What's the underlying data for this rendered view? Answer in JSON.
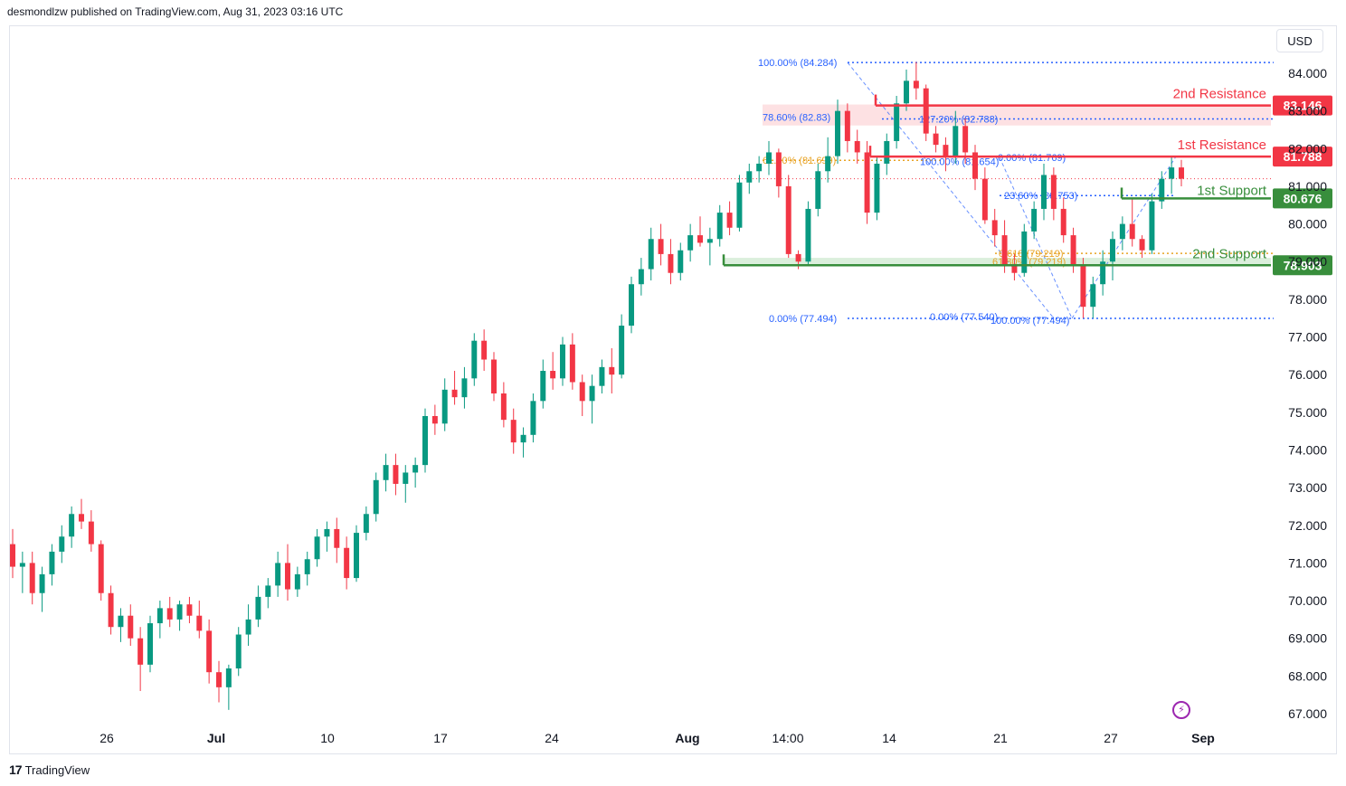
{
  "header": {
    "text": "desmondlzw published on TradingView.com, Aug 31, 2023 03:16 UTC"
  },
  "currency": "USD",
  "footer": {
    "brand": "TradingView",
    "logo_icon": "tradingview-logo-icon"
  },
  "colors": {
    "up": "#089981",
    "down": "#f23645",
    "resistance": "#f23645",
    "support": "#388e3c",
    "fib": "#2962ff",
    "fib_gold": "#e8a325"
  },
  "chart_data": {
    "type": "candlestick",
    "instrument_note": "",
    "y_axis": {
      "ticks": [
        "84.000",
        "83.000",
        "82.000",
        "81.000",
        "80.000",
        "79.000",
        "78.000",
        "77.000",
        "76.000",
        "75.000",
        "74.000",
        "73.000",
        "72.000",
        "71.000",
        "70.000",
        "69.000",
        "68.000",
        "67.000"
      ],
      "tick_values": [
        84,
        83,
        82,
        81,
        80,
        79,
        78,
        77,
        76,
        75,
        74,
        73,
        72,
        71,
        70,
        69,
        68,
        67
      ],
      "range": [
        66.8,
        84.9
      ]
    },
    "x_axis": {
      "ticks": [
        "26",
        "Jul",
        "10",
        "17",
        "24",
        "Aug",
        "14:00",
        "14",
        "21",
        "27",
        "Sep"
      ]
    },
    "levels": [
      {
        "name": "2nd Resistance",
        "value": 83.146,
        "label": "83.146",
        "kind": "resistance"
      },
      {
        "name": "1st Resistance",
        "value": 81.788,
        "label": "81.788",
        "kind": "resistance"
      },
      {
        "name": "1st Support",
        "value": 80.676,
        "label": "80.676",
        "kind": "support"
      },
      {
        "name": "2nd Support",
        "value": 78.903,
        "label": "78.903",
        "kind": "support"
      }
    ],
    "fib_labels": [
      {
        "text": "100.00% (84.284)",
        "value": 84.284
      },
      {
        "text": "78.60% (82.83)",
        "value": 82.83
      },
      {
        "text": "127.20% (82.788)",
        "value": 82.788
      },
      {
        "text": "100.00% (81.654)",
        "value": 81.654
      },
      {
        "text": "61.80% (81.690)",
        "value": 81.69
      },
      {
        "text": "0.00% (81.769)",
        "value": 81.769
      },
      {
        "text": "23.60% (80.753)",
        "value": 80.753
      },
      {
        "text": "0.618 (79.219)",
        "value": 79.219
      },
      {
        "text": "61.80% (79.219)",
        "value": 79.219
      },
      {
        "text": "0.00% (77.494)",
        "value": 77.494
      },
      {
        "text": "0.00% (77.540)",
        "value": 77.54
      },
      {
        "text": "100.00% (77.494)",
        "value": 77.494
      }
    ],
    "last_price": 81.2,
    "candles_ohlc": [
      [
        71.5,
        71.9,
        70.6,
        70.9
      ],
      [
        70.9,
        71.3,
        70.2,
        71.0
      ],
      [
        71.0,
        71.3,
        69.9,
        70.2
      ],
      [
        70.2,
        70.9,
        69.7,
        70.7
      ],
      [
        70.7,
        71.5,
        70.4,
        71.3
      ],
      [
        71.3,
        72.0,
        71.0,
        71.7
      ],
      [
        71.7,
        72.5,
        71.4,
        72.3
      ],
      [
        72.3,
        72.7,
        71.9,
        72.1
      ],
      [
        72.1,
        72.4,
        71.3,
        71.5
      ],
      [
        71.5,
        71.6,
        70.0,
        70.2
      ],
      [
        70.2,
        70.4,
        69.1,
        69.3
      ],
      [
        69.3,
        69.8,
        68.9,
        69.6
      ],
      [
        69.6,
        69.9,
        68.8,
        69.0
      ],
      [
        69.0,
        69.3,
        67.6,
        68.3
      ],
      [
        68.3,
        69.6,
        68.1,
        69.4
      ],
      [
        69.4,
        70.0,
        69.0,
        69.8
      ],
      [
        69.8,
        70.1,
        69.3,
        69.5
      ],
      [
        69.5,
        70.0,
        69.2,
        69.9
      ],
      [
        69.9,
        70.1,
        69.4,
        69.6
      ],
      [
        69.6,
        70.0,
        69.0,
        69.2
      ],
      [
        69.2,
        69.5,
        67.8,
        68.1
      ],
      [
        68.1,
        68.4,
        67.3,
        67.7
      ],
      [
        67.7,
        68.3,
        67.1,
        68.2
      ],
      [
        68.2,
        69.3,
        68.0,
        69.1
      ],
      [
        69.1,
        69.9,
        68.8,
        69.5
      ],
      [
        69.5,
        70.4,
        69.3,
        70.1
      ],
      [
        70.1,
        70.6,
        69.8,
        70.4
      ],
      [
        70.4,
        71.3,
        70.1,
        71.0
      ],
      [
        71.0,
        71.5,
        70.0,
        70.3
      ],
      [
        70.3,
        70.9,
        70.1,
        70.7
      ],
      [
        70.7,
        71.3,
        70.4,
        71.1
      ],
      [
        71.1,
        71.9,
        70.9,
        71.7
      ],
      [
        71.7,
        72.1,
        71.3,
        71.9
      ],
      [
        71.9,
        72.2,
        71.0,
        71.4
      ],
      [
        71.4,
        71.7,
        70.3,
        70.6
      ],
      [
        70.6,
        72.0,
        70.5,
        71.8
      ],
      [
        71.8,
        72.5,
        71.6,
        72.3
      ],
      [
        72.3,
        73.4,
        72.1,
        73.2
      ],
      [
        73.2,
        73.9,
        72.9,
        73.6
      ],
      [
        73.6,
        73.9,
        72.8,
        73.1
      ],
      [
        73.1,
        73.6,
        72.6,
        73.4
      ],
      [
        73.4,
        73.8,
        73.0,
        73.6
      ],
      [
        73.6,
        75.1,
        73.4,
        74.9
      ],
      [
        74.9,
        75.2,
        74.4,
        74.7
      ],
      [
        74.7,
        75.9,
        74.5,
        75.6
      ],
      [
        75.6,
        76.1,
        75.2,
        75.4
      ],
      [
        75.4,
        76.2,
        75.1,
        75.9
      ],
      [
        75.9,
        77.1,
        75.7,
        76.9
      ],
      [
        76.9,
        77.2,
        76.1,
        76.4
      ],
      [
        76.4,
        76.6,
        75.3,
        75.5
      ],
      [
        75.5,
        75.8,
        74.6,
        74.8
      ],
      [
        74.8,
        75.1,
        73.9,
        74.2
      ],
      [
        74.2,
        74.6,
        73.8,
        74.4
      ],
      [
        74.4,
        75.5,
        74.2,
        75.3
      ],
      [
        75.3,
        76.4,
        75.1,
        76.1
      ],
      [
        76.1,
        76.6,
        75.6,
        75.9
      ],
      [
        75.9,
        77.0,
        75.7,
        76.8
      ],
      [
        76.8,
        77.1,
        75.6,
        75.8
      ],
      [
        75.8,
        76.0,
        74.9,
        75.3
      ],
      [
        75.3,
        76.0,
        74.7,
        75.7
      ],
      [
        75.7,
        76.4,
        75.5,
        76.2
      ],
      [
        76.2,
        76.7,
        75.5,
        76.0
      ],
      [
        76.0,
        77.6,
        75.9,
        77.3
      ],
      [
        77.3,
        78.6,
        77.1,
        78.4
      ],
      [
        78.4,
        79.1,
        78.1,
        78.8
      ],
      [
        78.8,
        79.9,
        78.5,
        79.6
      ],
      [
        79.6,
        80.0,
        78.9,
        79.2
      ],
      [
        79.2,
        79.6,
        78.4,
        78.7
      ],
      [
        78.7,
        79.5,
        78.5,
        79.3
      ],
      [
        79.3,
        80.0,
        79.0,
        79.7
      ],
      [
        79.7,
        80.2,
        79.4,
        79.5
      ],
      [
        79.5,
        79.9,
        78.9,
        79.6
      ],
      [
        79.6,
        80.5,
        79.4,
        80.3
      ],
      [
        80.3,
        80.6,
        79.7,
        79.9
      ],
      [
        79.9,
        81.3,
        79.8,
        81.1
      ],
      [
        81.1,
        81.6,
        80.8,
        81.4
      ],
      [
        81.4,
        81.8,
        81.1,
        81.6
      ],
      [
        81.6,
        82.2,
        81.3,
        81.9
      ],
      [
        81.9,
        82.0,
        80.7,
        81.0
      ],
      [
        81.0,
        81.3,
        79.1,
        79.2
      ],
      [
        79.2,
        79.3,
        78.8,
        79.0
      ],
      [
        79.0,
        80.6,
        78.9,
        80.4
      ],
      [
        80.4,
        81.6,
        80.2,
        81.4
      ],
      [
        81.4,
        82.3,
        81.1,
        81.8
      ],
      [
        81.8,
        83.3,
        81.6,
        83.0
      ],
      [
        83.0,
        83.2,
        81.9,
        82.2
      ],
      [
        82.2,
        82.5,
        81.6,
        81.9
      ],
      [
        81.9,
        82.2,
        80.0,
        80.3
      ],
      [
        80.3,
        81.8,
        80.1,
        81.6
      ],
      [
        81.6,
        82.4,
        81.3,
        82.2
      ],
      [
        82.2,
        83.4,
        82.0,
        83.2
      ],
      [
        83.2,
        84.1,
        83.0,
        83.8
      ],
      [
        83.8,
        84.3,
        83.3,
        83.6
      ],
      [
        83.6,
        83.7,
        82.2,
        82.4
      ],
      [
        82.4,
        82.6,
        81.9,
        82.1
      ],
      [
        82.1,
        82.3,
        81.4,
        81.8
      ],
      [
        81.8,
        83.0,
        81.6,
        82.6
      ],
      [
        82.6,
        82.8,
        81.6,
        81.9
      ],
      [
        81.9,
        82.1,
        80.9,
        81.2
      ],
      [
        81.2,
        81.5,
        80.0,
        80.1
      ],
      [
        80.1,
        80.4,
        79.4,
        79.7
      ],
      [
        79.7,
        80.1,
        78.7,
        78.9
      ],
      [
        78.9,
        79.2,
        78.5,
        78.7
      ],
      [
        78.7,
        80.0,
        78.6,
        79.8
      ],
      [
        79.8,
        80.6,
        79.6,
        80.4
      ],
      [
        80.4,
        81.6,
        80.1,
        81.3
      ],
      [
        81.3,
        81.5,
        80.1,
        80.4
      ],
      [
        80.4,
        80.7,
        79.5,
        79.7
      ],
      [
        79.7,
        79.9,
        78.7,
        78.9
      ],
      [
        78.9,
        79.1,
        77.5,
        77.8
      ],
      [
        77.8,
        78.6,
        77.5,
        78.4
      ],
      [
        78.4,
        79.3,
        78.1,
        79.0
      ],
      [
        79.0,
        79.8,
        78.5,
        79.6
      ],
      [
        79.6,
        80.2,
        79.3,
        80.0
      ],
      [
        80.0,
        80.7,
        79.4,
        79.6
      ],
      [
        79.6,
        79.7,
        79.1,
        79.3
      ],
      [
        79.3,
        80.8,
        79.2,
        80.6
      ],
      [
        80.6,
        81.4,
        80.4,
        81.2
      ],
      [
        81.2,
        81.8,
        80.8,
        81.5
      ],
      [
        81.5,
        81.7,
        81.0,
        81.2
      ]
    ]
  }
}
